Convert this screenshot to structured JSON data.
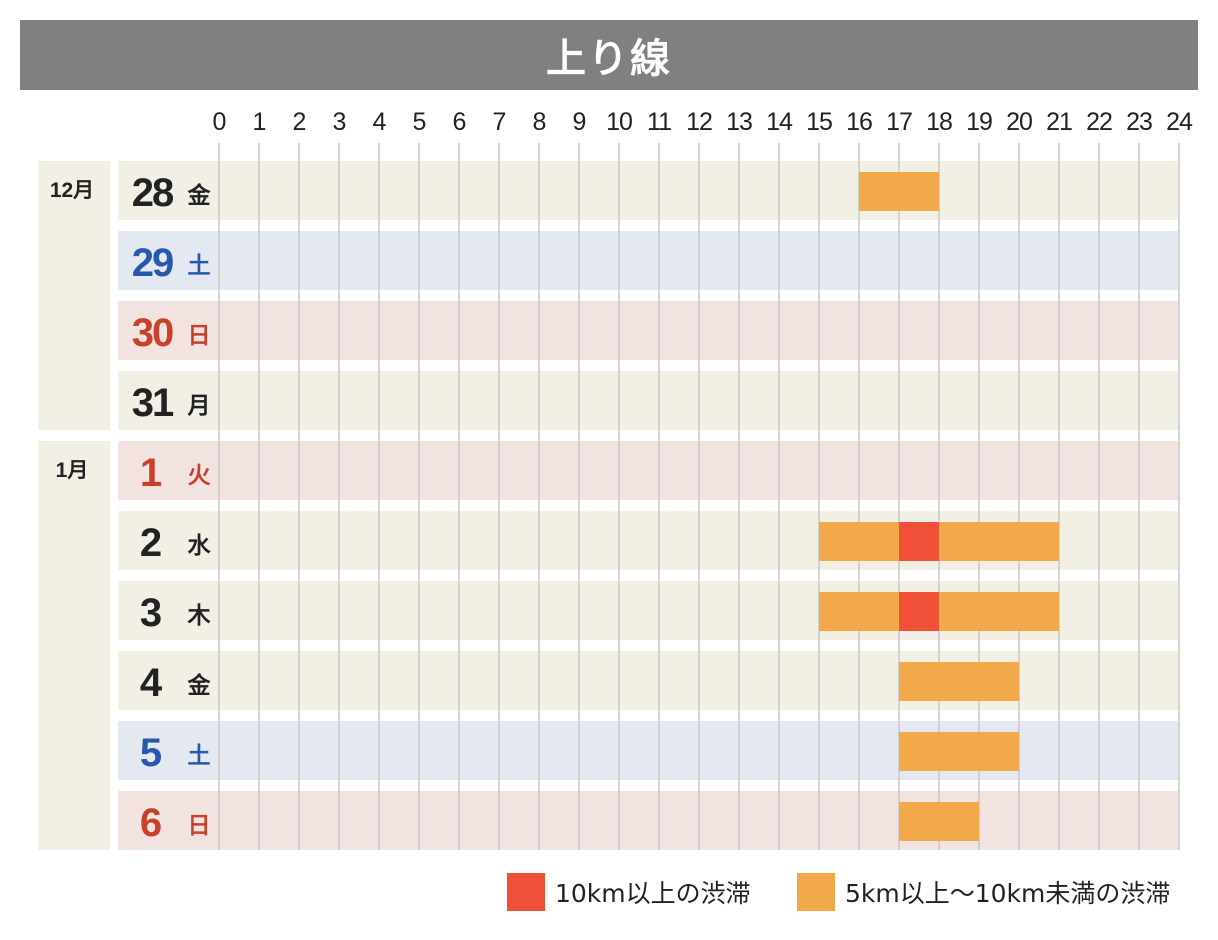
{
  "title": "上り線",
  "colors": {
    "heavy": "#ee5138",
    "moderate": "#f2a94a",
    "row_weekday": "#f2efe4",
    "row_saturday": "#e4e8f0",
    "row_holiday": "#f2e3e1",
    "month_bg": "#f2efe4",
    "text_weekday": "#222222",
    "text_saturday": "#2659ab",
    "text_holiday": "#c9412b",
    "grid": "#c8c8c8"
  },
  "chart_data": {
    "type": "timeline",
    "title": "上り線",
    "x_axis": {
      "min": 0,
      "max": 24,
      "ticks": [
        "0",
        "1",
        "2",
        "3",
        "4",
        "5",
        "6",
        "7",
        "8",
        "9",
        "10",
        "11",
        "12",
        "13",
        "14",
        "15",
        "16",
        "17",
        "18",
        "19",
        "20",
        "21",
        "22",
        "23",
        "24"
      ]
    },
    "months": [
      {
        "label": "12月",
        "first_row": 0,
        "last_row": 3
      },
      {
        "label": "1月",
        "first_row": 4,
        "last_row": 9
      }
    ],
    "rows": [
      {
        "day": "28",
        "weekday": "金",
        "kind": "weekday",
        "segments": [
          {
            "start": 16,
            "end": 18,
            "level": "moderate"
          }
        ]
      },
      {
        "day": "29",
        "weekday": "土",
        "kind": "saturday",
        "segments": []
      },
      {
        "day": "30",
        "weekday": "日",
        "kind": "holiday",
        "segments": []
      },
      {
        "day": "31",
        "weekday": "月",
        "kind": "weekday",
        "segments": []
      },
      {
        "day": "1",
        "weekday": "火",
        "kind": "holiday",
        "segments": []
      },
      {
        "day": "2",
        "weekday": "水",
        "kind": "weekday",
        "segments": [
          {
            "start": 15,
            "end": 17,
            "level": "moderate"
          },
          {
            "start": 17,
            "end": 18,
            "level": "heavy"
          },
          {
            "start": 18,
            "end": 21,
            "level": "moderate"
          }
        ]
      },
      {
        "day": "3",
        "weekday": "木",
        "kind": "weekday",
        "segments": [
          {
            "start": 15,
            "end": 17,
            "level": "moderate"
          },
          {
            "start": 17,
            "end": 18,
            "level": "heavy"
          },
          {
            "start": 18,
            "end": 21,
            "level": "moderate"
          }
        ]
      },
      {
        "day": "4",
        "weekday": "金",
        "kind": "weekday",
        "segments": [
          {
            "start": 17,
            "end": 20,
            "level": "moderate"
          }
        ]
      },
      {
        "day": "5",
        "weekday": "土",
        "kind": "saturday",
        "segments": [
          {
            "start": 17,
            "end": 20,
            "level": "moderate"
          }
        ]
      },
      {
        "day": "6",
        "weekday": "日",
        "kind": "holiday",
        "segments": [
          {
            "start": 17,
            "end": 19,
            "level": "moderate"
          }
        ]
      }
    ],
    "legend": [
      {
        "level": "heavy",
        "label": "10km以上の渋滞"
      },
      {
        "level": "moderate",
        "label": "5km以上～10km未満の渋滞"
      }
    ]
  }
}
